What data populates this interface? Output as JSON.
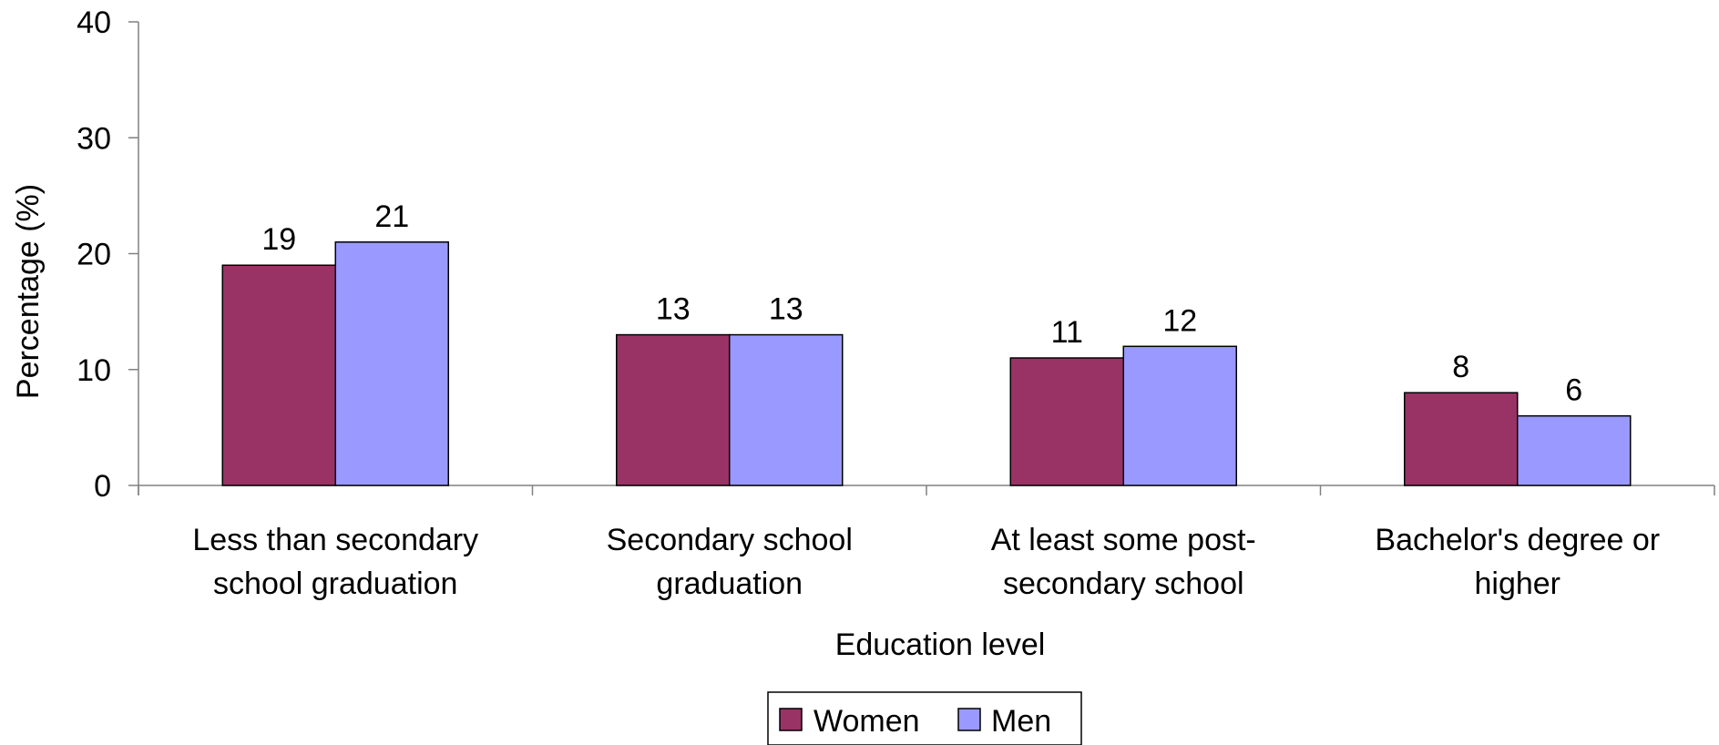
{
  "chart_data": {
    "type": "bar",
    "title": "",
    "xlabel": "Education level",
    "ylabel": "Percentage (%)",
    "ylim": [
      0,
      40
    ],
    "yticks": [
      0,
      10,
      20,
      30,
      40
    ],
    "grid": false,
    "legend_position": "bottom-center",
    "categories": [
      [
        "Less than secondary",
        "school graduation"
      ],
      [
        "Secondary school",
        "graduation"
      ],
      [
        "At least some post-",
        "secondary school"
      ],
      [
        "Bachelor's degree or",
        "higher"
      ]
    ],
    "series": [
      {
        "name": "Women",
        "color": "#993366",
        "values": [
          19,
          13,
          11,
          8
        ]
      },
      {
        "name": "Men",
        "color": "#9999FF",
        "values": [
          21,
          13,
          12,
          6
        ]
      }
    ]
  }
}
